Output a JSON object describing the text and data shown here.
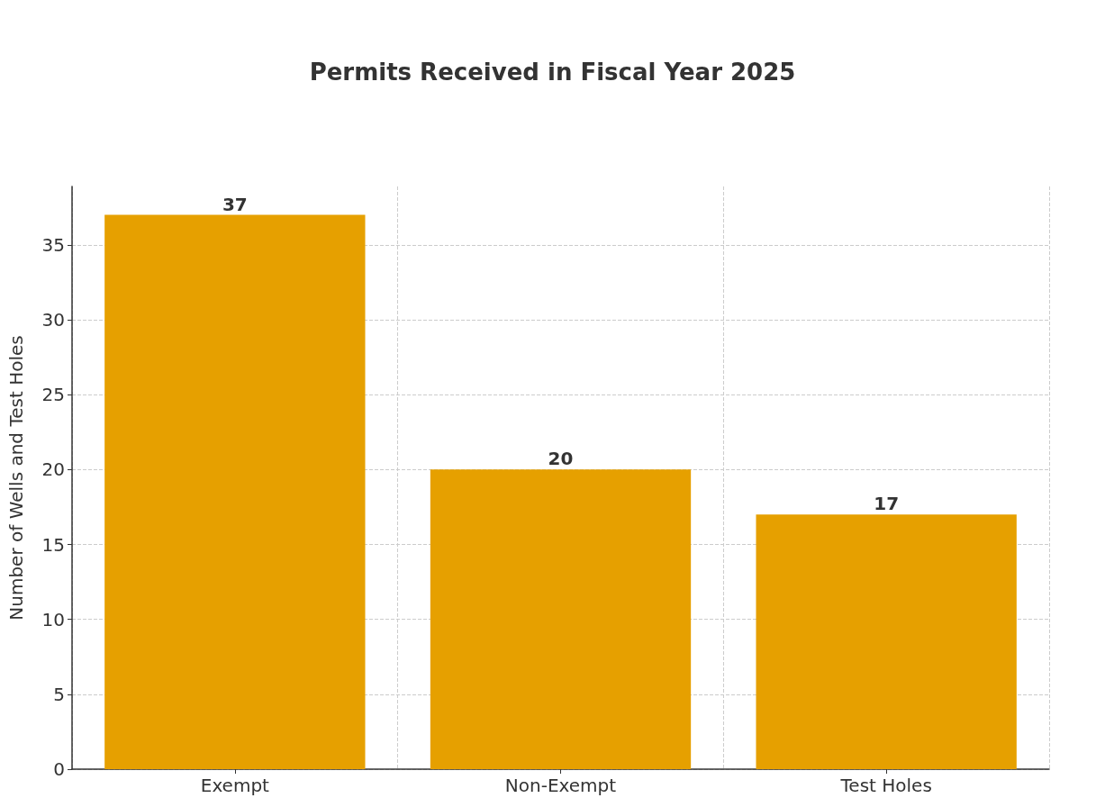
{
  "chart_data": {
    "type": "bar",
    "title": "Permits Received in Fiscal Year 2025",
    "ylabel": "Number of Wells and Test Holes",
    "categories": [
      "Exempt",
      "Non-Exempt",
      "Test Holes"
    ],
    "values": [
      37,
      20,
      17
    ],
    "color": "#e6a000",
    "ylim": [
      0,
      38.9
    ],
    "yticks": [
      0,
      5,
      10,
      15,
      20,
      25,
      30,
      35
    ],
    "grid": true,
    "data_labels": true
  }
}
